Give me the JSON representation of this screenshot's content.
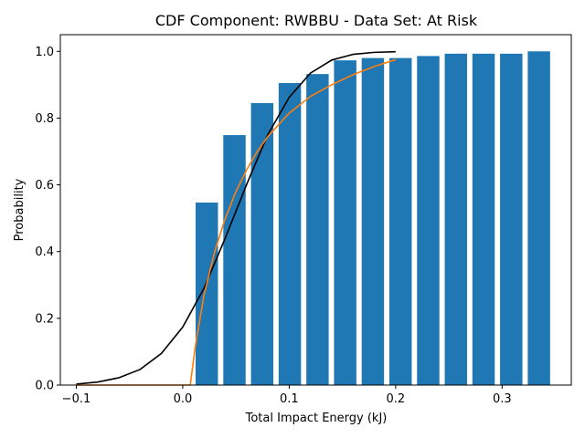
{
  "chart_data": {
    "type": "bar",
    "title": "CDF Component: RWBBU - Data Set: At Risk",
    "xlabel": "Total Impact Energy (kJ)",
    "ylabel": "Probability",
    "xlim": [
      -0.115,
      0.365
    ],
    "ylim": [
      0,
      1.05
    ],
    "xticks": [
      -0.1,
      0.0,
      0.1,
      0.2,
      0.3
    ],
    "xtick_labels": [
      "−0.1",
      "0.0",
      "0.1",
      "0.2",
      "0.3"
    ],
    "yticks": [
      0.0,
      0.2,
      0.4,
      0.6,
      0.8,
      1.0
    ],
    "ytick_labels": [
      "0.0",
      "0.2",
      "0.4",
      "0.6",
      "0.8",
      "1.0"
    ],
    "grid": false,
    "legend": null,
    "bars": {
      "color": "#1f77b4",
      "width": 0.021,
      "x": [
        0.0226,
        0.0486,
        0.0746,
        0.1006,
        0.1266,
        0.1526,
        0.1786,
        0.2046,
        0.2306,
        0.2566,
        0.2826,
        0.3086,
        0.3346
      ],
      "values": [
        0.547,
        0.749,
        0.845,
        0.905,
        0.932,
        0.973,
        0.98,
        0.98,
        0.986,
        0.993,
        0.993,
        0.993,
        1.0
      ]
    },
    "lines": [
      {
        "color": "#000000",
        "x": [
          -0.1,
          -0.08,
          -0.06,
          -0.04,
          -0.02,
          0.0,
          0.02,
          0.04,
          0.06,
          0.08,
          0.1,
          0.12,
          0.14,
          0.16,
          0.18,
          0.2
        ],
        "y": [
          0.003,
          0.009,
          0.022,
          0.047,
          0.095,
          0.174,
          0.29,
          0.441,
          0.601,
          0.751,
          0.862,
          0.935,
          0.974,
          0.991,
          0.997,
          0.999
        ]
      },
      {
        "color": "#ff7f0e",
        "x": [
          -0.1,
          -0.05,
          0.0,
          0.007,
          0.012,
          0.02,
          0.03,
          0.04,
          0.05,
          0.06,
          0.07,
          0.08,
          0.1,
          0.12,
          0.14,
          0.16,
          0.18,
          0.2
        ],
        "y": [
          0.0,
          0.0,
          0.0,
          0.0,
          0.12,
          0.27,
          0.4,
          0.5,
          0.58,
          0.645,
          0.7,
          0.745,
          0.815,
          0.865,
          0.9,
          0.93,
          0.955,
          0.975
        ]
      }
    ]
  }
}
